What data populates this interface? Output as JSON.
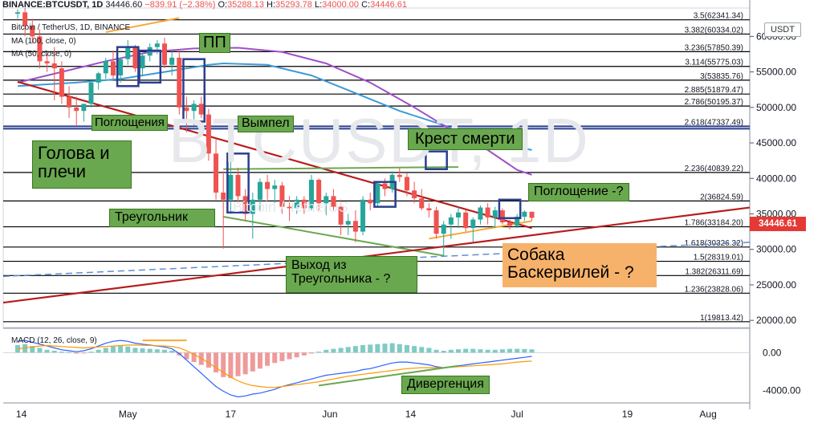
{
  "header": {
    "symbol": "BINANCE:BTCUSDT, 1D",
    "last": "34446.60",
    "change": "−839.91 (−2.38%)",
    "o_label": "O:",
    "o": "35288.13",
    "h_label": "H:",
    "h": "35293.78",
    "l_label": "L:",
    "l": "34000.00",
    "c_label": "C:",
    "c": "34446.61",
    "line2": "Bitcoin / TetherUS, 1D, BINANCE",
    "ma1": "MA (100, close, 0)",
    "ma2": "MA (50, close, 0)"
  },
  "watermark": {
    "big": "BTCUSDT, 1D",
    "small": "Bitcoin / TetherUS"
  },
  "price_axis": {
    "currency": "USDT",
    "last_price_label": "34446.61"
  },
  "colors": {
    "up": "#26a69a",
    "down": "#ef5350",
    "ma100": "#3d9ad9",
    "ma50": "#a050c8",
    "annot_green": "#6aa84f",
    "annot_orange": "#f6b26b",
    "trend_red": "#b71c1c",
    "fib": "#000000",
    "box_blue": "#2a3f8f"
  },
  "annotations": {
    "pp": "ПП",
    "engulf": "Поглощения",
    "pennant": "Вымпел",
    "hs_1": "Голова и",
    "hs_2": "плечи",
    "death_cross": "Крест смерти",
    "engulf_q": "Поглощение -?",
    "triangle": "Треугольник",
    "exit_1": "Выход из",
    "exit_2": "Треугольника - ?",
    "hound_1": "Собака",
    "hound_2": "Баскервилей - ?",
    "divergence": "Дивергенция"
  },
  "chart_data": [
    {
      "type": "candlestick",
      "title": "BINANCE:BTCUSDT, 1D",
      "ylim": [
        19000,
        64000
      ],
      "y_ticks": [
        "60000.00",
        "55000.00",
        "50000.00",
        "45000.00",
        "40000.00",
        "35000.00",
        "30000.00",
        "25000.00",
        "20000.00"
      ],
      "y_tick_values": [
        60000,
        55000,
        50000,
        45000,
        40000,
        35000,
        30000,
        25000,
        20000
      ],
      "x_tick_labels": [
        "14",
        "May",
        "17",
        "Jun",
        "14",
        "Jul",
        "19",
        "Aug"
      ],
      "fib_levels": [
        {
          "label": "3.5(62341.34)",
          "value": 62341.34
        },
        {
          "label": "3.382(60334.02)",
          "value": 60334.02
        },
        {
          "label": "3.236(57850.39)",
          "value": 57850.39
        },
        {
          "label": "3.114(55775.03)",
          "value": 55775.03
        },
        {
          "label": "3(53835.76)",
          "value": 53835.76
        },
        {
          "label": "2.885(51879.47)",
          "value": 51879.47
        },
        {
          "label": "2.786(50195.37)",
          "value": 50195.37
        },
        {
          "label": "2.618(47337.49)",
          "value": 47337.49
        },
        {
          "label": "2.236(40839.22)",
          "value": 40839.22
        },
        {
          "label": "2(36824.59)",
          "value": 36824.59
        },
        {
          "label": "1.786(33184.20)",
          "value": 33184.2
        },
        {
          "label": "1.618(30326.32)",
          "value": 30326.32
        },
        {
          "label": "1.5(28319.01)",
          "value": 28319.01
        },
        {
          "label": "1.382(26311.69)",
          "value": 26311.69
        },
        {
          "label": "1.236(23828.06)",
          "value": 23828.06
        },
        {
          "label": "1(19813.42)",
          "value": 19813.42
        }
      ],
      "candles": [
        [
          63200,
          63800,
          62500,
          63400
        ],
        [
          63400,
          64000,
          60000,
          61500
        ],
        [
          61500,
          62500,
          59000,
          60000
        ],
        [
          60000,
          61000,
          55500,
          56500
        ],
        [
          56500,
          57500,
          55000,
          56200
        ],
        [
          56200,
          58500,
          51000,
          55500
        ],
        [
          55500,
          56500,
          50500,
          51500
        ],
        [
          51500,
          53000,
          48500,
          50000
        ],
        [
          50000,
          51500,
          47500,
          49500
        ],
        [
          49500,
          50500,
          48000,
          50500
        ],
        [
          50500,
          54000,
          50000,
          53500
        ],
        [
          53500,
          55000,
          52500,
          54800
        ],
        [
          54800,
          57000,
          54000,
          56500
        ],
        [
          56500,
          58000,
          54000,
          54500
        ],
        [
          54500,
          57000,
          53500,
          56800
        ],
        [
          56800,
          59500,
          56000,
          58500
        ],
        [
          58500,
          58800,
          55000,
          55500
        ],
        [
          55500,
          57500,
          54500,
          57300
        ],
        [
          57300,
          59000,
          56500,
          58500
        ],
        [
          58500,
          59500,
          57500,
          59000
        ],
        [
          59000,
          59800,
          55500,
          56000
        ],
        [
          56000,
          58000,
          54500,
          57000
        ],
        [
          57000,
          58000,
          49000,
          50000
        ],
        [
          50000,
          51500,
          46500,
          49500
        ],
        [
          49500,
          51000,
          47500,
          50500
        ],
        [
          50500,
          51500,
          48500,
          49000
        ],
        [
          49000,
          49800,
          42500,
          43500
        ],
        [
          43500,
          45500,
          37000,
          38000
        ],
        [
          38000,
          41000,
          30100,
          37000
        ],
        [
          37000,
          42500,
          35000,
          40500
        ],
        [
          40500,
          41500,
          36500,
          37500
        ],
        [
          37500,
          38500,
          34000,
          35000
        ],
        [
          35000,
          38000,
          31500,
          37000
        ],
        [
          37000,
          40000,
          35500,
          39500
        ],
        [
          39500,
          40500,
          37000,
          38500
        ],
        [
          38500,
          39800,
          36500,
          39000
        ],
        [
          39000,
          39500,
          35000,
          36000
        ],
        [
          36000,
          37500,
          34000,
          35800
        ],
        [
          35800,
          37500,
          35000,
          37000
        ],
        [
          37000,
          37500,
          35000,
          35800
        ],
        [
          35800,
          40500,
          35500,
          39800
        ],
        [
          39800,
          40000,
          35500,
          36500
        ],
        [
          36500,
          38000,
          34800,
          37500
        ],
        [
          37500,
          38500,
          35500,
          36000
        ],
        [
          36000,
          37000,
          32000,
          33500
        ],
        [
          33500,
          35000,
          32000,
          34000
        ],
        [
          34000,
          35500,
          31000,
          32500
        ],
        [
          32500,
          37500,
          32000,
          37000
        ],
        [
          37000,
          38000,
          35500,
          36500
        ],
        [
          36500,
          39500,
          36000,
          39300
        ],
        [
          39300,
          40000,
          37500,
          38500
        ],
        [
          38500,
          41000,
          38000,
          40500
        ],
        [
          40500,
          41500,
          39500,
          40200
        ],
        [
          40200,
          40800,
          37500,
          38300
        ],
        [
          38300,
          39500,
          36500,
          37200
        ],
        [
          37200,
          38500,
          35500,
          35800
        ],
        [
          35800,
          36500,
          34500,
          35500
        ],
        [
          35500,
          36000,
          31500,
          32200
        ],
        [
          32200,
          34000,
          29000,
          33500
        ],
        [
          33500,
          35000,
          31500,
          34500
        ],
        [
          34500,
          36000,
          33000,
          35200
        ],
        [
          35200,
          35600,
          32500,
          33000
        ],
        [
          33000,
          34500,
          31000,
          34200
        ],
        [
          34200,
          36200,
          33500,
          35900
        ],
        [
          35900,
          36500,
          33500,
          34500
        ],
        [
          34500,
          36000,
          33000,
          35500
        ],
        [
          35500,
          35800,
          33500,
          33800
        ],
        [
          33800,
          34200,
          32800,
          33300
        ],
        [
          33300,
          35000,
          33000,
          34600
        ],
        [
          34600,
          35500,
          34000,
          35300
        ],
        [
          35300,
          35300,
          34000,
          34446.61
        ]
      ],
      "ma100": [
        [
          0,
          53000
        ],
        [
          8,
          53500
        ],
        [
          14,
          54000
        ],
        [
          20,
          55000
        ],
        [
          26,
          56000
        ],
        [
          28,
          56200
        ],
        [
          34,
          56000
        ],
        [
          40,
          54500
        ],
        [
          46,
          52000
        ],
        [
          52,
          49500
        ],
        [
          58,
          47500
        ],
        [
          62,
          45700
        ],
        [
          70,
          44000
        ]
      ],
      "ma50": [
        [
          0,
          53500
        ],
        [
          6,
          55000
        ],
        [
          12,
          56500
        ],
        [
          18,
          57800
        ],
        [
          24,
          58300
        ],
        [
          30,
          58400
        ],
        [
          36,
          57800
        ],
        [
          42,
          56200
        ],
        [
          48,
          53500
        ],
        [
          54,
          50000
        ],
        [
          60,
          46200
        ],
        [
          64,
          44000
        ],
        [
          68,
          41200
        ],
        [
          70,
          40500
        ]
      ],
      "trendlines": [
        {
          "name": "support",
          "from": [
            0,
            53600
          ],
          "to": [
            70,
            33000
          ],
          "color": "#b71c1c"
        },
        {
          "name": "pennant-top",
          "from": [
            12,
            60600
          ],
          "to": [
            22,
            62600
          ],
          "color": "#f6a836"
        },
        {
          "name": "triangle-top",
          "from": [
            28,
            41300
          ],
          "to": [
            60,
            41600
          ],
          "color": "#6aa84f"
        },
        {
          "name": "triangle-bottom",
          "from": [
            28,
            34600
          ],
          "to": [
            58,
            29100
          ],
          "color": "#6aa84f"
        },
        {
          "name": "hound-line",
          "from": [
            56,
            31500
          ],
          "to": [
            70,
            34000
          ],
          "color": "#f6a836"
        }
      ]
    },
    {
      "type": "bar",
      "title": "MACD (12, 26, close, 9)",
      "ylim": [
        -5000,
        2500
      ],
      "y_ticks": [
        "0.00",
        "-4000.00"
      ],
      "y_tick_values": [
        0,
        -4000
      ],
      "histogram": [
        800,
        900,
        700,
        500,
        300,
        200,
        100,
        50,
        -100,
        -50,
        100,
        300,
        500,
        650,
        700,
        650,
        500,
        450,
        400,
        350,
        300,
        200,
        -300,
        -700,
        -1000,
        -1300,
        -1600,
        -2100,
        -2600,
        -2700,
        -2500,
        -2300,
        -2000,
        -1700,
        -1400,
        -1100,
        -900,
        -700,
        -500,
        -300,
        -100,
        100,
        300,
        400,
        500,
        600,
        700,
        800,
        850,
        900,
        950,
        1000,
        900,
        800,
        700,
        600,
        500,
        300,
        200,
        300,
        350,
        400,
        400,
        350,
        300,
        300,
        350,
        400,
        400,
        380,
        350
      ],
      "macd": [
        1200,
        1300,
        1100,
        900,
        700,
        500,
        300,
        200,
        100,
        200,
        400,
        700,
        1000,
        1200,
        1300,
        1200,
        1000,
        900,
        800,
        700,
        600,
        400,
        -100,
        -800,
        -1500,
        -2200,
        -2900,
        -3600,
        -4100,
        -4500,
        -4700,
        -4600,
        -4400,
        -4300,
        -4100,
        -3900,
        -3600,
        -3400,
        -3200,
        -3000,
        -2800,
        -2600,
        -2400,
        -2300,
        -2200,
        -2100,
        -2000,
        -1800,
        -1700,
        -1500,
        -1300,
        -1100,
        -1000,
        -1000,
        -1100,
        -1200,
        -1300,
        -1500,
        -1600,
        -1500,
        -1400,
        -1300,
        -1200,
        -1100,
        -1000,
        -900,
        -800,
        -700,
        -600,
        -500,
        -400
      ],
      "signal": [
        400,
        500,
        600,
        700,
        750,
        700,
        650,
        600,
        550,
        500,
        550,
        600,
        650,
        700,
        750,
        800,
        800,
        780,
        760,
        730,
        700,
        650,
        500,
        200,
        -200,
        -600,
        -1100,
        -1600,
        -2100,
        -2600,
        -3000,
        -3300,
        -3500,
        -3600,
        -3700,
        -3700,
        -3600,
        -3500,
        -3400,
        -3300,
        -3200,
        -3100,
        -2950,
        -2800,
        -2650,
        -2500,
        -2400,
        -2300,
        -2200,
        -2100,
        -2000,
        -1900,
        -1800,
        -1700,
        -1650,
        -1600,
        -1600,
        -1600,
        -1600,
        -1550,
        -1500,
        -1450,
        -1400,
        -1350,
        -1300,
        -1250,
        -1200,
        -1100,
        -1000,
        -950,
        -900
      ]
    }
  ]
}
